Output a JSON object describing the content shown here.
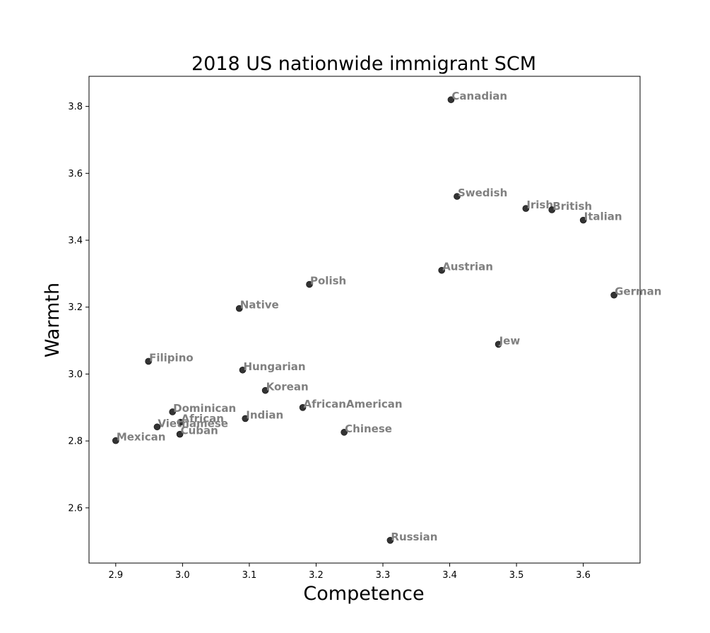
{
  "chart_data": {
    "type": "scatter",
    "title": "2018 US nationwide immigrant SCM",
    "xlabel": "Competence",
    "ylabel": "Warmth",
    "xlim": [
      2.86,
      3.685
    ],
    "ylim": [
      2.435,
      3.89
    ],
    "xticks": [
      2.9,
      3.0,
      3.1,
      3.2,
      3.3,
      3.4,
      3.5,
      3.6
    ],
    "yticks": [
      2.6,
      2.8,
      3.0,
      3.2,
      3.4,
      3.6,
      3.8
    ],
    "grid": false,
    "point_color": "#222222",
    "label_color": "#808080",
    "points": [
      {
        "label": "Canadian",
        "x": 3.402,
        "y": 3.82
      },
      {
        "label": "Swedish",
        "x": 3.411,
        "y": 3.531
      },
      {
        "label": "Irish",
        "x": 3.514,
        "y": 3.495
      },
      {
        "label": "British",
        "x": 3.553,
        "y": 3.491
      },
      {
        "label": "Italian",
        "x": 3.6,
        "y": 3.46
      },
      {
        "label": "Austrian",
        "x": 3.388,
        "y": 3.31
      },
      {
        "label": "Polish",
        "x": 3.19,
        "y": 3.268
      },
      {
        "label": "German",
        "x": 3.646,
        "y": 3.236
      },
      {
        "label": "Native",
        "x": 3.085,
        "y": 3.196
      },
      {
        "label": "Jew",
        "x": 3.473,
        "y": 3.089
      },
      {
        "label": "Filipino",
        "x": 2.949,
        "y": 3.038
      },
      {
        "label": "Hungarian",
        "x": 3.09,
        "y": 3.012
      },
      {
        "label": "Korean",
        "x": 3.124,
        "y": 2.951
      },
      {
        "label": "AfricanAmerican",
        "x": 3.18,
        "y": 2.9
      },
      {
        "label": "Dominican",
        "x": 2.985,
        "y": 2.887
      },
      {
        "label": "Indian",
        "x": 3.094,
        "y": 2.867
      },
      {
        "label": "African",
        "x": 2.997,
        "y": 2.856
      },
      {
        "label": "Vietnamese",
        "x": 2.962,
        "y": 2.842
      },
      {
        "label": "Chinese",
        "x": 3.242,
        "y": 2.826
      },
      {
        "label": "Cuban",
        "x": 2.996,
        "y": 2.82
      },
      {
        "label": "Mexican",
        "x": 2.9,
        "y": 2.801
      },
      {
        "label": "Russian",
        "x": 3.311,
        "y": 2.503
      }
    ]
  }
}
